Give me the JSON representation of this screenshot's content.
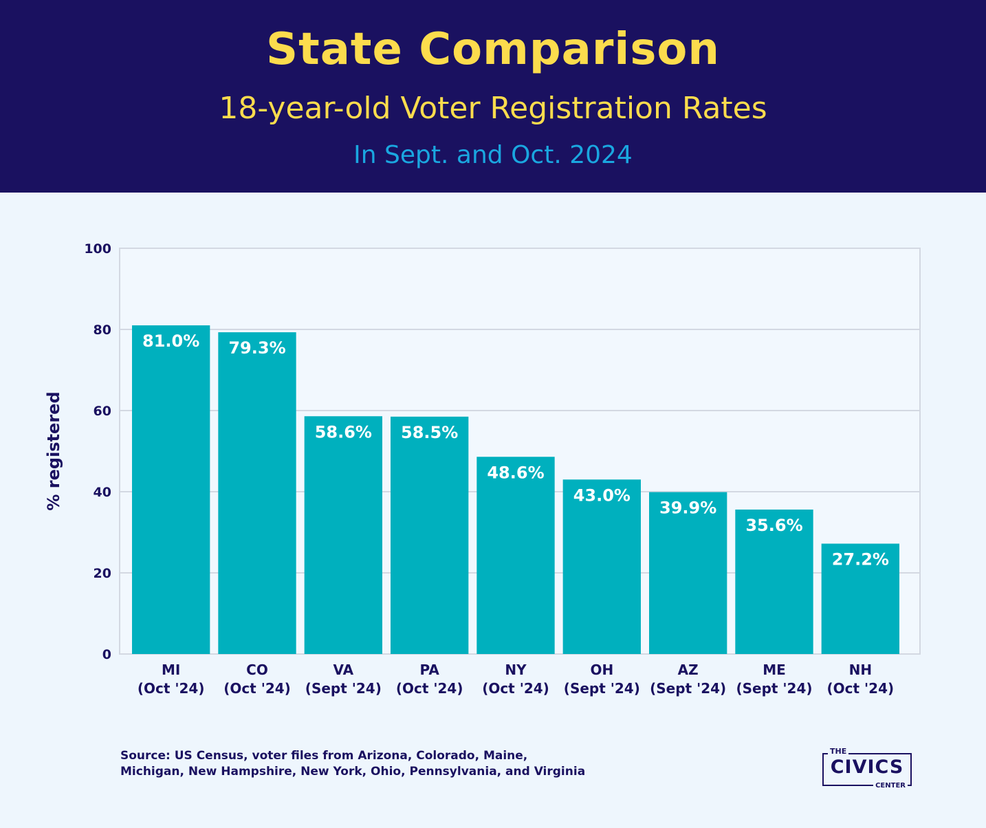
{
  "header": {
    "title": "State Comparison",
    "subtitle": "18-year-old Voter Registration Rates",
    "subtitle2": "In Sept. and Oct. 2024"
  },
  "colors": {
    "header_bg": "#1a1160",
    "title": "#fcdc4d",
    "subtitle2": "#1aa7e0",
    "bar": "#00b0be",
    "background": "#eef6fd",
    "grid": "#d3d8e2",
    "text": "#1a1160"
  },
  "chart_data": {
    "type": "bar",
    "ylabel": "% registered",
    "ylim": [
      0,
      100
    ],
    "yticks": [
      0,
      20,
      40,
      60,
      80,
      100
    ],
    "grid": true,
    "categories": [
      {
        "state": "MI",
        "period": "(Oct '24)"
      },
      {
        "state": "CO",
        "period": "(Oct '24)"
      },
      {
        "state": "VA",
        "period": "(Sept '24)"
      },
      {
        "state": "PA",
        "period": "(Oct '24)"
      },
      {
        "state": "NY",
        "period": "(Oct '24)"
      },
      {
        "state": "OH",
        "period": "(Sept '24)"
      },
      {
        "state": "AZ",
        "period": "(Sept '24)"
      },
      {
        "state": "ME",
        "period": "(Sept '24)"
      },
      {
        "state": "NH",
        "period": "(Oct '24)"
      }
    ],
    "values": [
      81.0,
      79.3,
      58.6,
      58.5,
      48.6,
      43.0,
      39.9,
      35.6,
      27.2
    ],
    "value_labels": [
      "81.0%",
      "79.3%",
      "58.6%",
      "58.5%",
      "48.6%",
      "43.0%",
      "39.9%",
      "35.6%",
      "27.2%"
    ]
  },
  "footer": {
    "source_line1": "Source: US Census, voter files from Arizona, Colorado, Maine,",
    "source_line2": "Michigan, New Hampshire, New York, Ohio, Pennsylvania, and Virginia",
    "logo_the": "THE",
    "logo_civics": "CIVICS",
    "logo_center": "CENTER"
  }
}
